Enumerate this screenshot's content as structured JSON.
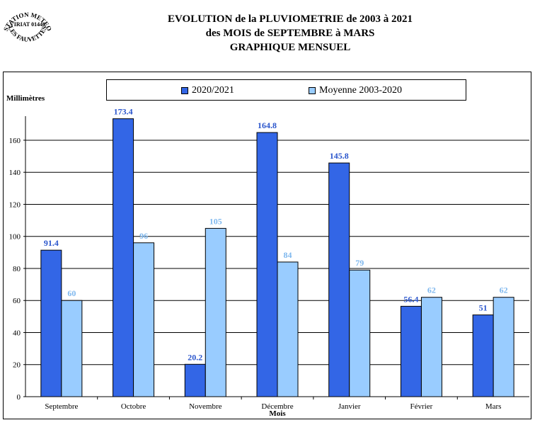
{
  "logo": {
    "top_text": "STATION METEO",
    "middle_text": "VIRIAT 01440",
    "bottom_text": "LES FAUVETTES"
  },
  "titles": {
    "line1": "EVOLUTION de la PLUVIOMETRIE de 2003 à 2021",
    "line2": "des MOIS de SEPTEMBRE à MARS",
    "line3": "GRAPHIQUE MENSUEL"
  },
  "chart_data": {
    "type": "bar",
    "categories": [
      "Septembre",
      "Octobre",
      "Novembre",
      "Décembre",
      "Janvier",
      "Février",
      "Mars"
    ],
    "series": [
      {
        "name": "2020/2021",
        "values": [
          91.4,
          173.4,
          20.2,
          164.8,
          145.8,
          56.4,
          51
        ],
        "labels": [
          "91.4",
          "173.4",
          "20.2",
          "164.8",
          "145.8",
          "56.4",
          "51"
        ],
        "color": "#3366e6"
      },
      {
        "name": "Moyenne 2003-2020",
        "values": [
          60,
          96,
          105,
          84,
          79,
          62,
          62
        ],
        "labels": [
          "60",
          "96",
          "105",
          "84",
          "79",
          "62",
          "62"
        ],
        "color": "#99ccff"
      }
    ],
    "ylabel": "Millimètres",
    "xlabel": "Mois",
    "ylim": [
      0,
      175
    ],
    "yticks": [
      0,
      20,
      40,
      60,
      80,
      100,
      120,
      140,
      160
    ],
    "grid": true,
    "legend_position": "top"
  }
}
